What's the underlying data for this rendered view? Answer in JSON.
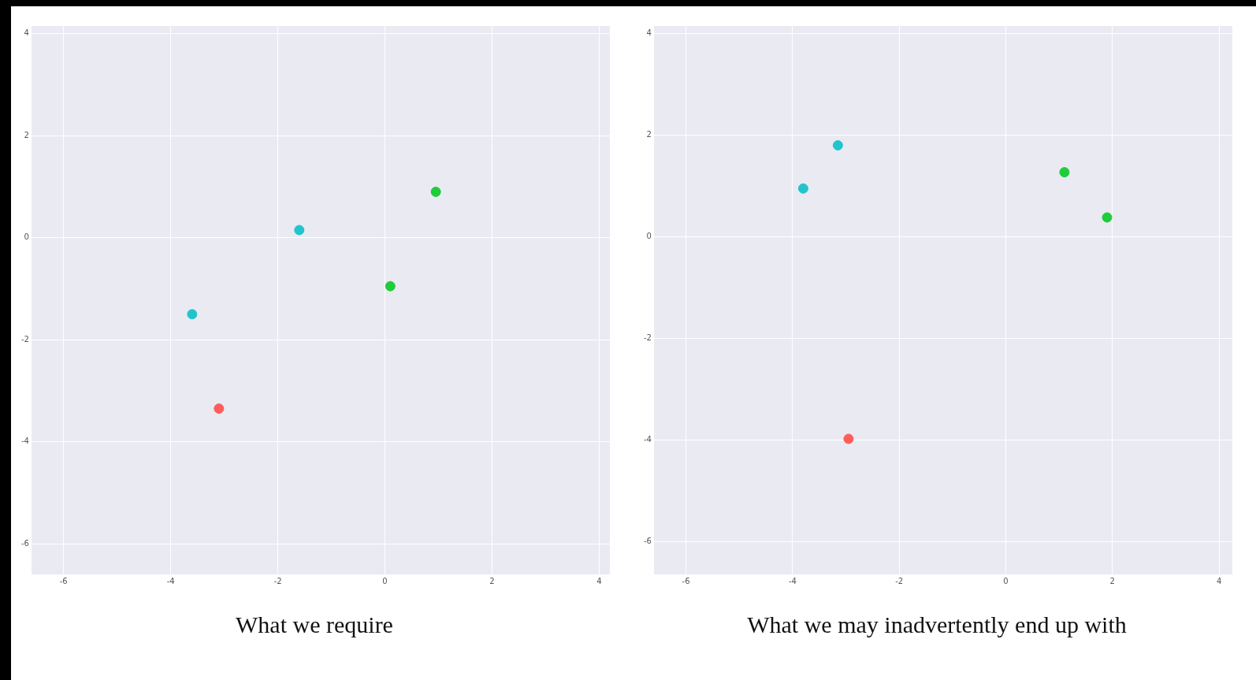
{
  "chart_data": [
    {
      "type": "scatter",
      "title": "What we require",
      "xlim": [
        -6.6,
        4.2
      ],
      "ylim": [
        -6.6,
        4.15
      ],
      "xticks": [
        -6,
        -4,
        -2,
        0,
        2,
        4
      ],
      "yticks": [
        -6,
        -4,
        -2,
        0,
        2,
        4
      ],
      "grid": true,
      "marker": "circle",
      "series": [
        {
          "color": "#22c4cc",
          "x": [
            -3.6,
            -1.6
          ],
          "values": [
            -1.5,
            0.15
          ]
        },
        {
          "color": "#1fcc3a",
          "x": [
            0.1,
            0.95
          ],
          "values": [
            -0.95,
            0.9
          ]
        },
        {
          "color": "#ff5c5c",
          "x": [
            -3.1
          ],
          "values": [
            -3.35
          ]
        }
      ]
    },
    {
      "type": "scatter",
      "title": "What we may inadvertently end up with",
      "xlim": [
        -6.6,
        4.25
      ],
      "ylim": [
        -6.65,
        4.15
      ],
      "xticks": [
        -6,
        -4,
        -2,
        0,
        2,
        4
      ],
      "yticks": [
        -6,
        -4,
        -2,
        0,
        2,
        4
      ],
      "grid": true,
      "marker": "circle",
      "series": [
        {
          "color": "#22c4cc",
          "x": [
            -3.8,
            -3.15
          ],
          "values": [
            0.95,
            1.8
          ]
        },
        {
          "color": "#1fcc3a",
          "x": [
            1.1,
            1.9
          ],
          "values": [
            1.27,
            0.38
          ]
        },
        {
          "color": "#ff5c5c",
          "x": [
            -2.95
          ],
          "values": [
            -3.98
          ]
        }
      ]
    }
  ]
}
